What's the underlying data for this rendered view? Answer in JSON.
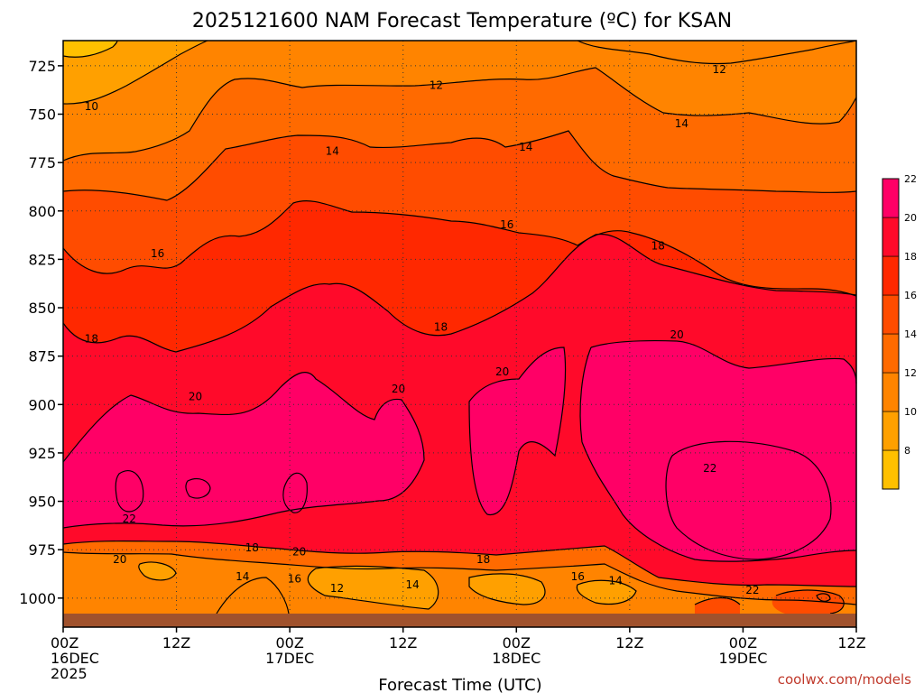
{
  "chart_data": {
    "type": "heatmap",
    "title": "2025121600 NAM Forecast Temperature (ºC) for KSAN",
    "xlabel": "Forecast Time (UTC)",
    "ylabel": "",
    "x_range_hours": [
      0,
      84
    ],
    "y_range_hpa": [
      1015,
      712
    ],
    "y_ticks": [
      725,
      750,
      775,
      800,
      825,
      850,
      875,
      900,
      925,
      950,
      975,
      1000
    ],
    "x_ticks": [
      {
        "hour": 0,
        "line1": "00Z",
        "line2": "16DEC",
        "line3": "2025"
      },
      {
        "hour": 12,
        "line1": "12Z",
        "line2": "",
        "line3": ""
      },
      {
        "hour": 24,
        "line1": "00Z",
        "line2": "17DEC",
        "line3": ""
      },
      {
        "hour": 36,
        "line1": "12Z",
        "line2": "",
        "line3": ""
      },
      {
        "hour": 48,
        "line1": "00Z",
        "line2": "18DEC",
        "line3": ""
      },
      {
        "hour": 60,
        "line1": "12Z",
        "line2": "",
        "line3": ""
      },
      {
        "hour": 72,
        "line1": "00Z",
        "line2": "19DEC",
        "line3": ""
      },
      {
        "hour": 84,
        "line1": "12Z",
        "line2": "",
        "line3": ""
      }
    ],
    "colorbar": {
      "levels": [
        8,
        10,
        12,
        14,
        16,
        18,
        20,
        22
      ],
      "colors": [
        "#ffc000",
        "#ffa000",
        "#ff8400",
        "#ff6a00",
        "#ff4c00",
        "#ff2800",
        "#ff0a2a",
        "#ff0066"
      ]
    },
    "contour_labels": [
      {
        "text": "10",
        "hour": 3.0,
        "hpa": 746
      },
      {
        "text": "12",
        "hour": 39.5,
        "hpa": 735
      },
      {
        "text": "12",
        "hour": 69.5,
        "hpa": 727
      },
      {
        "text": "14",
        "hour": 28.5,
        "hpa": 769
      },
      {
        "text": "14",
        "hour": 49.0,
        "hpa": 767
      },
      {
        "text": "14",
        "hour": 65.5,
        "hpa": 755
      },
      {
        "text": "16",
        "hour": 10.0,
        "hpa": 822
      },
      {
        "text": "16",
        "hour": 47.0,
        "hpa": 807
      },
      {
        "text": "18",
        "hour": 63.0,
        "hpa": 818
      },
      {
        "text": "18",
        "hour": 3.0,
        "hpa": 866
      },
      {
        "text": "18",
        "hour": 40.0,
        "hpa": 860
      },
      {
        "text": "20",
        "hour": 14.0,
        "hpa": 896
      },
      {
        "text": "20",
        "hour": 35.5,
        "hpa": 892
      },
      {
        "text": "20",
        "hour": 46.5,
        "hpa": 883
      },
      {
        "text": "20",
        "hour": 65.0,
        "hpa": 864
      },
      {
        "text": "22",
        "hour": 68.5,
        "hpa": 933
      },
      {
        "text": "22",
        "hour": 7.0,
        "hpa": 959
      },
      {
        "text": "20",
        "hour": 6.0,
        "hpa": 980
      },
      {
        "text": "20",
        "hour": 25.0,
        "hpa": 976
      },
      {
        "text": "18",
        "hour": 20.0,
        "hpa": 974
      },
      {
        "text": "18",
        "hour": 44.5,
        "hpa": 980
      },
      {
        "text": "22",
        "hour": 73.0,
        "hpa": 996
      },
      {
        "text": "14",
        "hour": 19.0,
        "hpa": 989
      },
      {
        "text": "16",
        "hour": 24.5,
        "hpa": 990
      },
      {
        "text": "12",
        "hour": 29.0,
        "hpa": 995
      },
      {
        "text": "14",
        "hour": 37.0,
        "hpa": 993
      },
      {
        "text": "16",
        "hour": 54.5,
        "hpa": 989
      },
      {
        "text": "14",
        "hour": 58.5,
        "hpa": 991
      }
    ]
  },
  "footer": {
    "credit": "coolwx.com/models"
  }
}
